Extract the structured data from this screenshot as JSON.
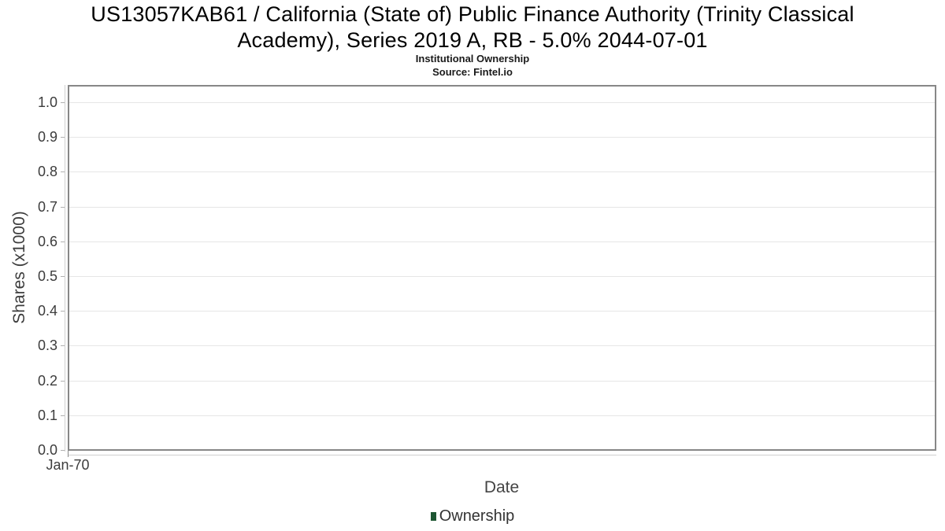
{
  "header": {
    "title_line1": "US13057KAB61 / California (State of) Public Finance Authority (Trinity Classical",
    "title_line2": "Academy), Series 2019 A, RB - 5.0% 2044-07-01",
    "subtitle": "Institutional Ownership",
    "source": "Source: Fintel.io"
  },
  "axes": {
    "x_label": "Date",
    "y_label": "Shares (x1000)",
    "x_tick": "Jan-70"
  },
  "legend": {
    "items": [
      {
        "label": "Ownership",
        "color": "#1d5632"
      }
    ]
  },
  "colors": {
    "plot_border": "#878787",
    "gridline": "#e6e6e6",
    "axis_line": "#d0d0d0",
    "tick_text": "#3c3c3c",
    "series_green": "#1d5632",
    "background": "#ffffff"
  },
  "chart_data": {
    "type": "line",
    "title": "US13057KAB61 / California (State of) Public Finance Authority (Trinity Classical Academy), Series 2019 A, RB - 5.0% 2044-07-01",
    "subtitle": "Institutional Ownership",
    "source": "Source: Fintel.io",
    "xlabel": "Date",
    "ylabel": "Shares (x1000)",
    "x_tick_labels": [
      "Jan-70"
    ],
    "y_tick_labels": [
      "0.0",
      "0.1",
      "0.2",
      "0.3",
      "0.4",
      "0.5",
      "0.6",
      "0.7",
      "0.8",
      "0.9",
      "1.0"
    ],
    "ylim": [
      0.0,
      1.05
    ],
    "grid": true,
    "legend_position": "bottom",
    "series": [
      {
        "name": "Ownership",
        "color": "#1d5632",
        "x": [],
        "values": []
      }
    ]
  }
}
